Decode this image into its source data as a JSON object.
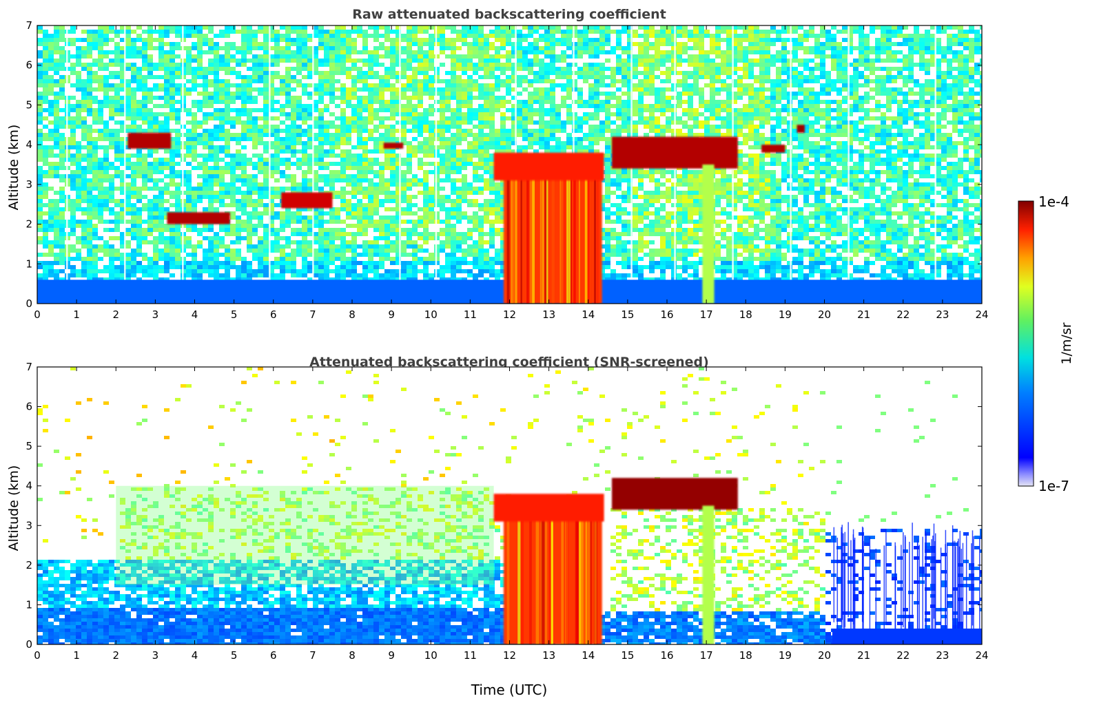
{
  "chart_data": [
    {
      "type": "heatmap",
      "title": "Raw attenuated backscattering coefficient",
      "xlabel": "",
      "ylabel": "Altitude (km)",
      "xlim": [
        0,
        24
      ],
      "ylim": [
        0,
        7
      ],
      "x_ticks": [
        "0",
        "1",
        "2",
        "3",
        "4",
        "5",
        "6",
        "7",
        "8",
        "9",
        "10",
        "11",
        "12",
        "13",
        "14",
        "15",
        "16",
        "17",
        "18",
        "19",
        "20",
        "21",
        "22",
        "23",
        "24"
      ],
      "y_ticks": [
        "0",
        "1",
        "2",
        "3",
        "4",
        "5",
        "6",
        "7"
      ],
      "features": [
        {
          "name": "surface layer",
          "x": [
            0,
            24
          ],
          "y": [
            0,
            0.6
          ],
          "level": 0.22
        },
        {
          "name": "thick cloud column",
          "x": [
            11.85,
            14.35
          ],
          "y": [
            0,
            3.4
          ],
          "level": 0.82
        },
        {
          "name": "cloud base band",
          "x": [
            11.6,
            14.4
          ],
          "y": [
            3.1,
            3.8
          ],
          "level": 0.85
        },
        {
          "name": "cloud layer",
          "x": [
            2.3,
            3.4
          ],
          "y": [
            3.9,
            4.3
          ],
          "level": 0.95
        },
        {
          "name": "cloud layer",
          "x": [
            3.3,
            4.9
          ],
          "y": [
            2.0,
            2.3
          ],
          "level": 0.95
        },
        {
          "name": "cloud layer",
          "x": [
            6.2,
            7.5
          ],
          "y": [
            2.4,
            2.8
          ],
          "level": 0.92
        },
        {
          "name": "cloud layer",
          "x": [
            8.8,
            9.3
          ],
          "y": [
            3.9,
            4.05
          ],
          "level": 0.95
        },
        {
          "name": "cloud layer",
          "x": [
            14.6,
            17.8
          ],
          "y": [
            3.4,
            4.2
          ],
          "level": 0.95
        },
        {
          "name": "cloud layer",
          "x": [
            18.4,
            19.0
          ],
          "y": [
            3.8,
            4.0
          ],
          "level": 0.95
        },
        {
          "name": "cloud layer",
          "x": [
            19.3,
            19.5
          ],
          "y": [
            4.3,
            4.5
          ],
          "level": 0.97
        },
        {
          "name": "precipitation column",
          "x": [
            16.9,
            17.2
          ],
          "y": [
            0,
            3.5
          ],
          "level": 0.55
        }
      ]
    },
    {
      "type": "heatmap",
      "title": "Attenuated backscattering coefficient (SNR-screened)",
      "xlabel": "Time (UTC)",
      "ylabel": "Altitude (km)",
      "xlim": [
        0,
        24
      ],
      "ylim": [
        0,
        7
      ],
      "x_ticks": [
        "0",
        "1",
        "2",
        "3",
        "4",
        "5",
        "6",
        "7",
        "8",
        "9",
        "10",
        "11",
        "12",
        "13",
        "14",
        "15",
        "16",
        "17",
        "18",
        "19",
        "20",
        "21",
        "22",
        "23",
        "24"
      ],
      "y_ticks": [
        "0",
        "1",
        "2",
        "3",
        "4",
        "5",
        "6",
        "7"
      ],
      "features": [
        {
          "name": "boundary layer",
          "x": [
            0,
            11.8
          ],
          "y": [
            0,
            2.2
          ],
          "level": 0.2
        },
        {
          "name": "aerosol layer",
          "x": [
            2.0,
            11.6
          ],
          "y": [
            1.5,
            4.0
          ],
          "level": 0.5
        },
        {
          "name": "thick cloud column",
          "x": [
            11.85,
            14.35
          ],
          "y": [
            0,
            3.4
          ],
          "level": 0.82
        },
        {
          "name": "cloud base band",
          "x": [
            11.6,
            14.4
          ],
          "y": [
            3.1,
            3.8
          ],
          "level": 0.85
        },
        {
          "name": "cloud layer",
          "x": [
            14.6,
            17.8
          ],
          "y": [
            3.4,
            4.2
          ],
          "level": 0.98
        },
        {
          "name": "precipitation column",
          "x": [
            16.9,
            17.2
          ],
          "y": [
            0,
            3.5
          ],
          "level": 0.55
        },
        {
          "name": "surface layer",
          "x": [
            20.2,
            24
          ],
          "y": [
            0,
            0.4
          ],
          "level": 0.18
        }
      ]
    }
  ],
  "colorbar": {
    "label": "1/m/sr",
    "max_label": "1e-4",
    "min_label": "1e-7",
    "colormap": "jet"
  }
}
